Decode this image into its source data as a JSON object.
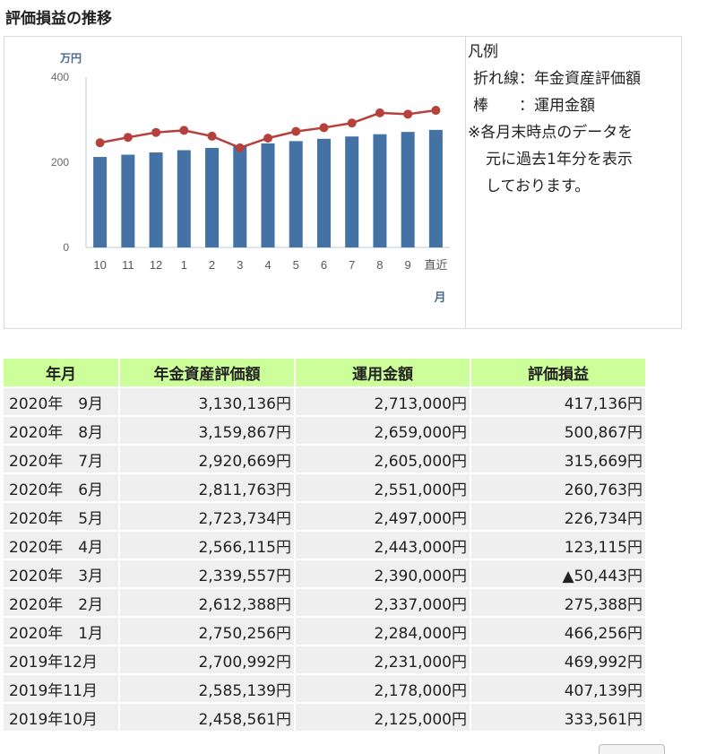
{
  "page_title": "評価損益の推移",
  "legend": {
    "heading": "凡例",
    "line_label": "折れ線：年金資産評価額",
    "bar_label": "棒　　：運用金額",
    "note_lines": [
      "※各月末時点のデータを",
      "元に過去1年分を表示",
      "しております。"
    ]
  },
  "chart_data": {
    "type": "bar",
    "unit_label": "万円",
    "xlabel": "月",
    "categories": [
      "10",
      "11",
      "12",
      "1",
      "2",
      "3",
      "4",
      "5",
      "6",
      "7",
      "8",
      "9",
      "直近"
    ],
    "ylim": [
      0,
      400
    ],
    "yticks": [
      "0",
      "200",
      "400"
    ],
    "grid": false,
    "series": [
      {
        "type": "bar",
        "color": "#4472a4",
        "values": [
          212.5,
          217.8,
          223.1,
          228.4,
          233.7,
          239.0,
          244.3,
          249.7,
          255.1,
          260.5,
          265.9,
          271.3,
          276.0
        ]
      },
      {
        "type": "line",
        "color": "#b5403c",
        "values": [
          245.9,
          258.5,
          270.1,
          275.0,
          261.2,
          234.0,
          256.6,
          272.4,
          281.2,
          292.1,
          316.0,
          313.0,
          322.0
        ]
      }
    ]
  },
  "table": {
    "headers": [
      "年月",
      "年金資産評価額",
      "運用金額",
      "評価損益"
    ],
    "rows": [
      [
        "2020年　9月",
        "3,130,136円",
        "2,713,000円",
        "417,136円"
      ],
      [
        "2020年　8月",
        "3,159,867円",
        "2,659,000円",
        "500,867円"
      ],
      [
        "2020年　7月",
        "2,920,669円",
        "2,605,000円",
        "315,669円"
      ],
      [
        "2020年　6月",
        "2,811,763円",
        "2,551,000円",
        "260,763円"
      ],
      [
        "2020年　5月",
        "2,723,734円",
        "2,497,000円",
        "226,734円"
      ],
      [
        "2020年　4月",
        "2,566,115円",
        "2,443,000円",
        "123,115円"
      ],
      [
        "2020年　3月",
        "2,339,557円",
        "2,390,000円",
        "▲50,443円"
      ],
      [
        "2020年　2月",
        "2,612,388円",
        "2,337,000円",
        "275,388円"
      ],
      [
        "2020年　1月",
        "2,750,256円",
        "2,284,000円",
        "466,256円"
      ],
      [
        "2019年12月",
        "2,700,992円",
        "2,231,000円",
        "469,992円"
      ],
      [
        "2019年11月",
        "2,585,139円",
        "2,178,000円",
        "407,139円"
      ],
      [
        "2019年10月",
        "2,458,561円",
        "2,125,000円",
        "333,561円"
      ]
    ]
  }
}
